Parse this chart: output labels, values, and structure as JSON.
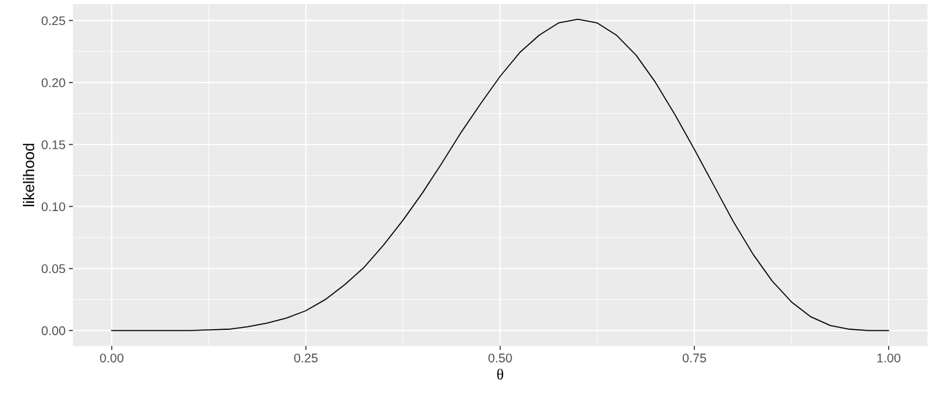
{
  "chart_data": {
    "type": "line",
    "xlabel": "θ",
    "ylabel": "likelihood",
    "x": [
      0,
      0.05,
      0.1,
      0.125,
      0.15,
      0.175,
      0.2,
      0.225,
      0.25,
      0.275,
      0.3,
      0.325,
      0.35,
      0.375,
      0.4,
      0.425,
      0.45,
      0.475,
      0.5,
      0.525,
      0.55,
      0.575,
      0.6,
      0.625,
      0.65,
      0.675,
      0.7,
      0.725,
      0.75,
      0.775,
      0.8,
      0.825,
      0.85,
      0.875,
      0.9,
      0.925,
      0.95,
      0.975,
      1.0
    ],
    "series": [
      {
        "color": "#000000",
        "values": [
          0,
          0,
          0,
          0.0005,
          0.001,
          0.003,
          0.006,
          0.01,
          0.016,
          0.025,
          0.037,
          0.051,
          0.069,
          0.089,
          0.111,
          0.135,
          0.16,
          0.183,
          0.205,
          0.224,
          0.238,
          0.248,
          0.251,
          0.248,
          0.238,
          0.222,
          0.2,
          0.174,
          0.146,
          0.117,
          0.088,
          0.062,
          0.04,
          0.023,
          0.011,
          0.004,
          0.001,
          0,
          0
        ]
      }
    ],
    "xlim": [
      -0.05,
      1.05
    ],
    "ylim": [
      -0.0125,
      0.2633
    ],
    "xticks": [
      {
        "value": 0,
        "label": "0.00"
      },
      {
        "value": 0.25,
        "label": "0.25"
      },
      {
        "value": 0.5,
        "label": "0.50"
      },
      {
        "value": 0.75,
        "label": "0.75"
      },
      {
        "value": 1.0,
        "label": "1.00"
      }
    ],
    "yticks": [
      {
        "value": 0,
        "label": "0.00"
      },
      {
        "value": 0.05,
        "label": "0.05"
      },
      {
        "value": 0.1,
        "label": "0.10"
      },
      {
        "value": 0.15,
        "label": "0.15"
      },
      {
        "value": 0.2,
        "label": "0.20"
      },
      {
        "value": 0.25,
        "label": "0.25"
      }
    ],
    "grid": true,
    "marker": "none",
    "line_style": "solid"
  }
}
